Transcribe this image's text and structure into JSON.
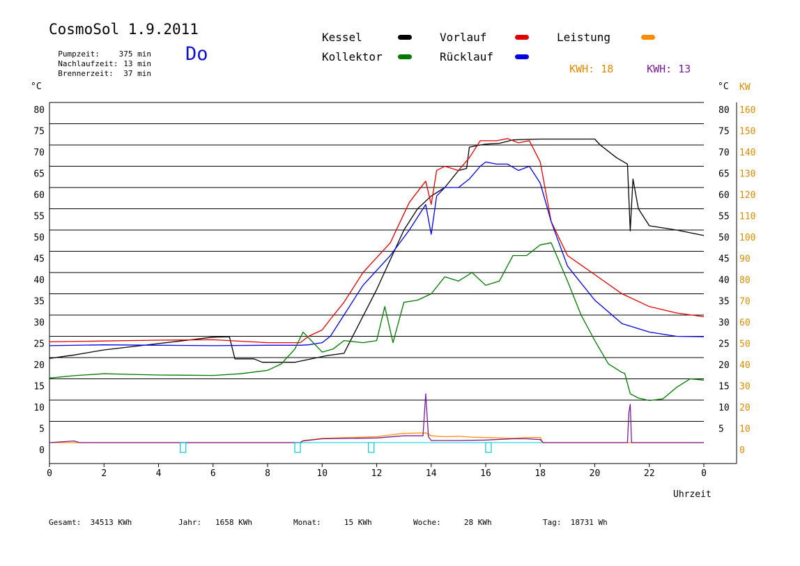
{
  "header": {
    "title": "CosmoSol 1.9.2011",
    "day": "Do",
    "info": [
      {
        "label": "Pumpzeit:",
        "value": "375 min"
      },
      {
        "label": "Nachlaufzeit:",
        "value": "13 min"
      },
      {
        "label": "Brennerzeit:",
        "value": "37 min"
      }
    ]
  },
  "legend": {
    "kessel": "Kessel",
    "vorlauf": "Vorlauf",
    "leistung": "Leistung",
    "kollektor": "Kollektor",
    "ruecklauf": "Rücklauf",
    "kwh1_label": "KWH:",
    "kwh1_value": "18",
    "kwh2_label": "KWH:",
    "kwh2_value": "13"
  },
  "axes": {
    "left_unit": "°C",
    "right_unit": "°C",
    "kw_unit": "KW",
    "x_label": "Uhrzeit"
  },
  "footer": {
    "gesamt_label": "Gesamt:",
    "gesamt_value": "34513 KWh",
    "jahr_label": "Jahr:",
    "jahr_value": "1658 KWh",
    "monat_label": "Monat:",
    "monat_value": "15 KWh",
    "woche_label": "Woche:",
    "woche_value": "28 KWh",
    "tag_label": "Tag:",
    "tag_value": "18731 Wh"
  },
  "colors": {
    "kessel": "#000000",
    "vorlauf": "#e00000",
    "ruecklauf": "#0000e0",
    "kollektor": "#007800",
    "leistung": "#ff8c00",
    "kwh2": "#7a1a9a",
    "pump": "#00c8d8"
  },
  "chart_data": {
    "type": "line",
    "xlabel": "Uhrzeit",
    "ylabel": "°C",
    "y2label": "KW",
    "xlim": [
      0,
      24
    ],
    "ylim": [
      0,
      80
    ],
    "y2lim": [
      0,
      160
    ],
    "grid": true,
    "x_ticks": [
      "0",
      "2",
      "4",
      "6",
      "8",
      "10",
      "12",
      "14",
      "16",
      "18",
      "20",
      "22",
      "0"
    ],
    "y_ticks": [
      "0",
      "5",
      "10",
      "15",
      "20",
      "25",
      "30",
      "35",
      "40",
      "45",
      "50",
      "55",
      "60",
      "65",
      "70",
      "75",
      "80"
    ],
    "y_ticks_right": [
      "",
      "5",
      "10",
      "15",
      "20",
      "25",
      "30",
      "35",
      "40",
      "45",
      "50",
      "55",
      "60",
      "65",
      "70",
      "75",
      "80"
    ],
    "y2_ticks": [
      "0",
      "10",
      "20",
      "30",
      "40",
      "50",
      "60",
      "70",
      "80",
      "90",
      "100",
      "110",
      "120",
      "130",
      "140",
      "150",
      "160"
    ],
    "series": [
      {
        "name": "Kessel",
        "key": "kessel",
        "x": [
          0,
          0.9,
          2,
          4,
          6,
          6.6,
          6.8,
          7.5,
          7.8,
          9,
          10.2,
          10.8,
          12,
          13,
          13.5,
          14,
          14.5,
          15,
          15.3,
          15.4,
          15.8,
          16,
          16.5,
          17,
          17.4,
          18,
          19,
          20,
          20.2,
          20.8,
          21.2,
          21.3,
          21.4,
          21.6,
          22,
          23,
          24
        ],
        "y": [
          19.8,
          20.6,
          21.8,
          23.3,
          24.8,
          24.9,
          19.7,
          19.7,
          18.9,
          18.9,
          20.5,
          21,
          36,
          50,
          55,
          58,
          60,
          64,
          64.5,
          69.5,
          70,
          70.2,
          70.4,
          71.2,
          71.3,
          71.4,
          71.4,
          71.4,
          70,
          67,
          65.5,
          49.8,
          62,
          55,
          51,
          50,
          48.7
        ]
      },
      {
        "name": "Vorlauf",
        "key": "vorlauf",
        "x": [
          0,
          2,
          4,
          6,
          8,
          9.2,
          9.5,
          10,
          10.3,
          10.8,
          11.5,
          12.5,
          13.2,
          13.8,
          14,
          14.2,
          14.5,
          15,
          15.4,
          15.8,
          16,
          16.4,
          16.8,
          17.2,
          17.6,
          18,
          18.4,
          19,
          20,
          21,
          22,
          23,
          24
        ],
        "y": [
          23.7,
          23.9,
          24.1,
          24.2,
          23.5,
          23.5,
          25,
          26.5,
          29,
          33,
          40,
          47,
          56.5,
          61.5,
          56,
          64,
          65,
          64,
          67,
          71,
          71,
          71,
          71.5,
          70.5,
          71,
          66,
          52,
          44,
          39.5,
          35,
          32,
          30.5,
          29.6
        ]
      },
      {
        "name": "Rücklauf",
        "key": "ruecklauf",
        "x": [
          0,
          2,
          4,
          6,
          8,
          9.2,
          9.5,
          10,
          10.3,
          10.8,
          11.5,
          12.5,
          13.2,
          13.8,
          14,
          14.2,
          14.5,
          15,
          15.4,
          15.8,
          16,
          16.4,
          16.8,
          17.2,
          17.6,
          18,
          18.4,
          19,
          20,
          21,
          22,
          23,
          24
        ],
        "y": [
          22.8,
          23,
          22.9,
          22.8,
          22.9,
          22.9,
          23,
          23.5,
          25,
          30,
          37,
          44,
          50,
          56,
          49,
          58,
          60,
          60,
          62,
          65,
          66,
          65.5,
          65.5,
          64,
          65,
          61,
          52,
          41.5,
          33.5,
          28,
          26,
          25,
          24.9
        ]
      },
      {
        "name": "Kollektor",
        "key": "kollektor",
        "x": [
          0,
          1,
          2,
          4,
          6,
          7,
          8,
          8.5,
          9,
          9.3,
          9.6,
          10,
          10.4,
          10.8,
          11.5,
          12,
          12.3,
          12.6,
          13,
          13.5,
          14,
          14.5,
          15,
          15.5,
          16,
          16.5,
          17,
          17.5,
          18,
          18.4,
          19,
          19.5,
          20,
          20.5,
          21,
          21.1,
          21.3,
          21.6,
          22,
          22.5,
          23,
          23.5,
          24
        ],
        "y": [
          15.2,
          15.8,
          16.2,
          15.9,
          15.8,
          16.2,
          17,
          18.5,
          22,
          26,
          24,
          21.3,
          22,
          24,
          23.5,
          24,
          32,
          23.5,
          33,
          33.5,
          35,
          39,
          38,
          40,
          37,
          38,
          44,
          44,
          46.5,
          47,
          38,
          30,
          24,
          18.5,
          16.5,
          16.3,
          11.5,
          10.5,
          9.9,
          10.3,
          13,
          15,
          14.7
        ]
      },
      {
        "name": "Leistung",
        "key": "leistung",
        "x": [
          0,
          9.2,
          9.3,
          10,
          11,
          12,
          12.5,
          13,
          13.8,
          14,
          14.5,
          15,
          15.5,
          16,
          16.5,
          17,
          17.5,
          18,
          18.1,
          24
        ],
        "y": [
          0,
          0,
          0.5,
          1,
          1.2,
          1.4,
          1.8,
          2.2,
          2.3,
          1.6,
          1.4,
          1.5,
          1.3,
          1.2,
          1.1,
          1,
          1.2,
          1.2,
          0,
          0
        ]
      },
      {
        "name": "KWH 2",
        "key": "kwh2",
        "x": [
          0,
          0.9,
          1,
          1.1,
          9.2,
          9.3,
          10,
          11,
          12,
          13,
          13.7,
          13.8,
          13.9,
          14,
          15,
          16,
          17,
          17.5,
          18,
          18.1,
          21.2,
          21.25,
          21.3,
          21.35,
          24
        ],
        "y": [
          0,
          0.4,
          0.2,
          0,
          0,
          0.4,
          0.9,
          1,
          1.1,
          1.6,
          1.6,
          11.5,
          1.4,
          0.5,
          0.5,
          0.6,
          0.9,
          0.9,
          0.7,
          0,
          0,
          7,
          9,
          0,
          0
        ]
      }
    ],
    "pump_markers_x": [
      4.9,
      9.1,
      11.8,
      16.1
    ]
  }
}
